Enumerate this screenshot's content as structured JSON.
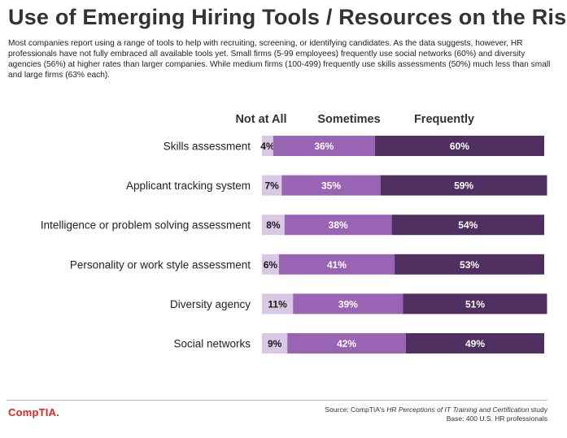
{
  "title": "Use of Emerging Hiring Tools / Resources on the Rise",
  "subtitle": "Most companies report using a range of tools to help with recruiting, screening, or identifying candidates. As the data suggests, however, HR professionals have not fully embraced all available tools yet. Small firms (5-99 employees) frequently use social networks (60%) and diversity agencies (56%) at higher rates than larger companies. While medium firms (100-499) frequently use skills assessments (50%) much less than small and large firms (63% each).",
  "chart_data": {
    "type": "bar",
    "orientation": "horizontal",
    "stacked": true,
    "title": "Use of Emerging Hiring Tools / Resources on the Rise",
    "categories": [
      "Skills assessment",
      "Applicant tracking system",
      "Intelligence or problem solving assessment",
      "Personality or work style assessment",
      "Diversity agency",
      "Social networks"
    ],
    "series": [
      {
        "name": "Not at All",
        "values": [
          4,
          7,
          8,
          6,
          11,
          9
        ]
      },
      {
        "name": "Sometimes",
        "values": [
          36,
          35,
          38,
          41,
          39,
          42
        ]
      },
      {
        "name": "Frequently",
        "values": [
          60,
          59,
          54,
          53,
          51,
          49
        ]
      }
    ],
    "value_suffix": "%",
    "xlim": [
      0,
      100
    ],
    "legend_position": "top",
    "colors": [
      "#d9c7e3",
      "#9a64b4",
      "#4f3061"
    ]
  },
  "footer": {
    "logo": "CompTIA.",
    "source_prefix": "Source: CompTIA's ",
    "source_title": "HR Perceptions of IT Training and Certification",
    "source_suffix": " study",
    "base": "Base: 400 U.S. HR professionals"
  }
}
